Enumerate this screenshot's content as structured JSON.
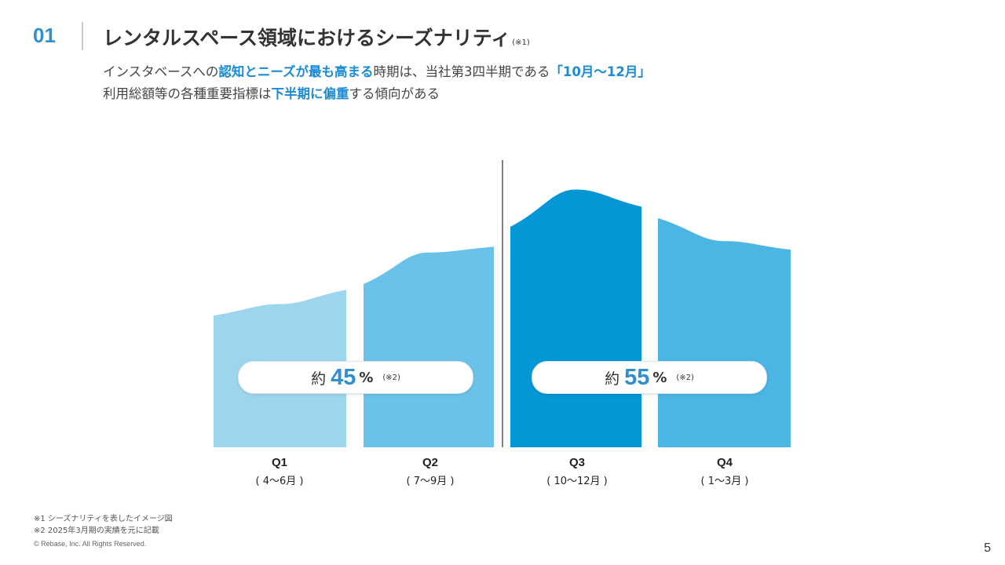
{
  "header": {
    "section_number": "01",
    "title": "レンタルスペース領域におけるシーズナリティ",
    "title_note": "(※1)"
  },
  "lead": {
    "line1": [
      {
        "text": "インスタベースへの",
        "hl": false
      },
      {
        "text": "認知とニーズが最も高まる",
        "hl": true
      },
      {
        "text": "時期は、当社第3四半期である",
        "hl": false
      },
      {
        "text": "「10月〜12月」",
        "hl": true
      }
    ],
    "line2": [
      {
        "text": "利用総額等の各種重要指標は",
        "hl": false
      },
      {
        "text": "下半期に偏重",
        "hl": true
      },
      {
        "text": "する傾向がある",
        "hl": false
      }
    ]
  },
  "chart_data": {
    "type": "area",
    "categories": [
      "Q1",
      "Q2",
      "Q3",
      "Q4"
    ],
    "category_sublabels": [
      "( 4〜6月 )",
      "( 7〜9月 )",
      "( 10〜12月 )",
      "( 1〜3月 )"
    ],
    "shares": [
      {
        "label": "約",
        "value": "45",
        "unit": "%",
        "note": "(※2)",
        "quarters": [
          "Q1",
          "Q2"
        ]
      },
      {
        "label": "約",
        "value": "55",
        "unit": "%",
        "note": "(※2)",
        "quarters": [
          "Q3",
          "Q4"
        ]
      }
    ],
    "illustrative_levels": [
      [
        0.46,
        0.5,
        0.55
      ],
      [
        0.57,
        0.68,
        0.7
      ],
      [
        0.77,
        0.9,
        0.84
      ],
      [
        0.8,
        0.72,
        0.69
      ]
    ],
    "colors": [
      "#9dd5ee",
      "#6ac2e8",
      "#0596d5",
      "#4bb5e4"
    ],
    "divider_color": "#555555",
    "ylim": [
      0,
      1
    ],
    "grid": false
  },
  "footnotes": [
    "※1 シーズナリティを表したイメージ図",
    "※2 2025年3月期の実績を元に記載"
  ],
  "footer": {
    "copyright": "© Rebase, Inc. All Rights Reserved.",
    "page_number": "5"
  }
}
